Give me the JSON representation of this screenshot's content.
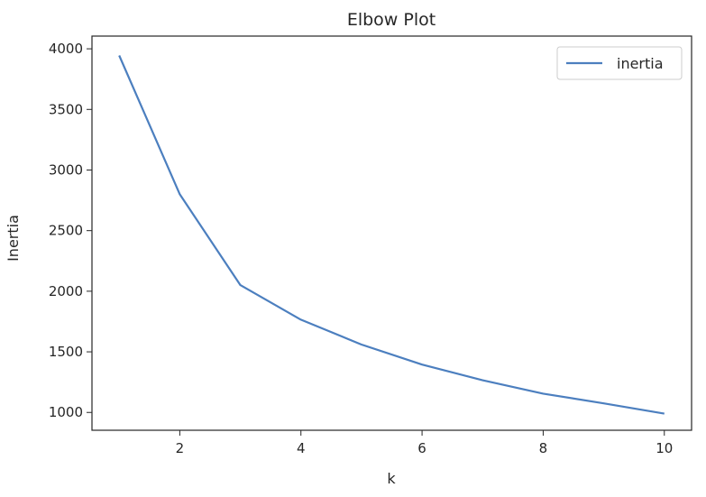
{
  "chart_data": {
    "type": "line",
    "title": "Elbow Plot",
    "xlabel": "k",
    "ylabel": "Inertia",
    "x": [
      1,
      2,
      3,
      4,
      5,
      6,
      7,
      8,
      9,
      10
    ],
    "series": [
      {
        "name": "inertia",
        "values": [
          3945,
          2800,
          2050,
          1765,
          1560,
          1395,
          1265,
          1155,
          1075,
          990
        ],
        "color": "#4c7fbf"
      }
    ],
    "xlim": [
      0.55,
      10.45
    ],
    "ylim": [
      853,
      4105
    ],
    "xticks": [
      2,
      4,
      6,
      8,
      10
    ],
    "yticks": [
      1000,
      1500,
      2000,
      2500,
      3000,
      3500,
      4000
    ],
    "grid": false,
    "legend_position": "top-right"
  }
}
